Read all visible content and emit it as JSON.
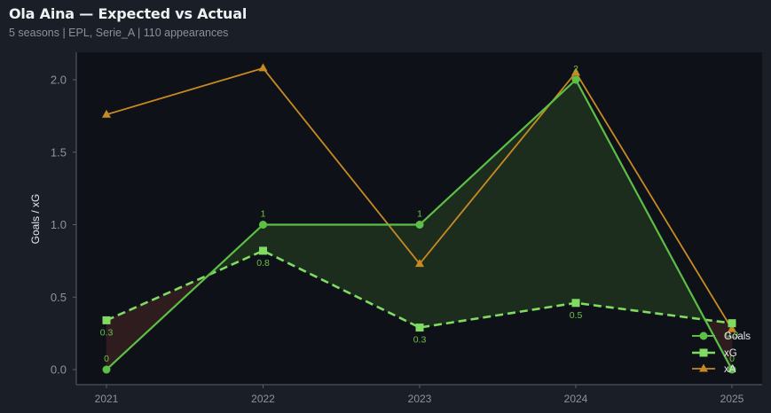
{
  "header": {
    "title": "Ola Aina — Expected vs Actual",
    "subtitle": "5 seasons | EPL, Serie_A | 110 appearances"
  },
  "colors": {
    "background": "#1a1e26",
    "plot_background": "#0e1118",
    "goals": "#5cbf46",
    "xg": "#7fdb62",
    "xa": "#c78a22",
    "overperform_fill": "#1c2d1e",
    "underperform_fill": "#2e1c1e",
    "axis": "#5a606b",
    "tick_text": "#8e949e"
  },
  "chart_data": {
    "type": "line",
    "title": "Ola Aina — Expected vs Actual",
    "subtitle": "5 seasons | EPL, Serie_A | 110 appearances",
    "xlabel": "",
    "ylabel": "Goals / xG",
    "categories": [
      "2021",
      "2022",
      "2023",
      "2024",
      "2025"
    ],
    "yticks": [
      "0.0",
      "0.5",
      "1.0",
      "1.5",
      "2.0"
    ],
    "ylim": [
      -0.1,
      2.18
    ],
    "grid": false,
    "legend_position": "lower right",
    "series": [
      {
        "name": "Goals",
        "values": [
          0,
          1,
          1,
          2,
          0
        ],
        "marker": "circle",
        "style": "solid",
        "labels": [
          "0",
          "1",
          "1",
          "2",
          "0"
        ]
      },
      {
        "name": "xG",
        "values": [
          0.34,
          0.82,
          0.29,
          0.46,
          0.32
        ],
        "marker": "square",
        "style": "dashed",
        "labels": [
          "0.3",
          "0.8",
          "0.3",
          "0.5",
          "0.3"
        ]
      },
      {
        "name": "xA",
        "values": [
          1.76,
          2.08,
          0.73,
          2.05,
          0.28
        ],
        "marker": "triangle",
        "style": "solid"
      }
    ],
    "fill_between": {
      "series": [
        "Goals",
        "xG"
      ],
      "above_color": "#1c2d1e",
      "below_color": "#2e1c1e"
    }
  },
  "legend": {
    "items": [
      {
        "label": "Goals"
      },
      {
        "label": "xG"
      },
      {
        "label": "xA"
      }
    ]
  }
}
